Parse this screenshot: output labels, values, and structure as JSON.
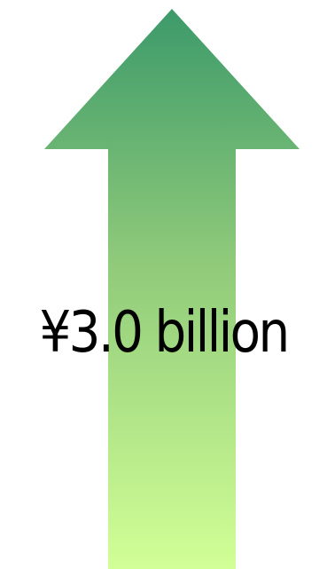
{
  "graphic": {
    "arrow_icon": "up-arrow-icon",
    "gradient_top_color": "#3c9a6a",
    "gradient_mid_color": "#8fca7a",
    "gradient_bottom_color": "#d2ff96"
  },
  "label": {
    "amount": "¥3.0 billion"
  }
}
